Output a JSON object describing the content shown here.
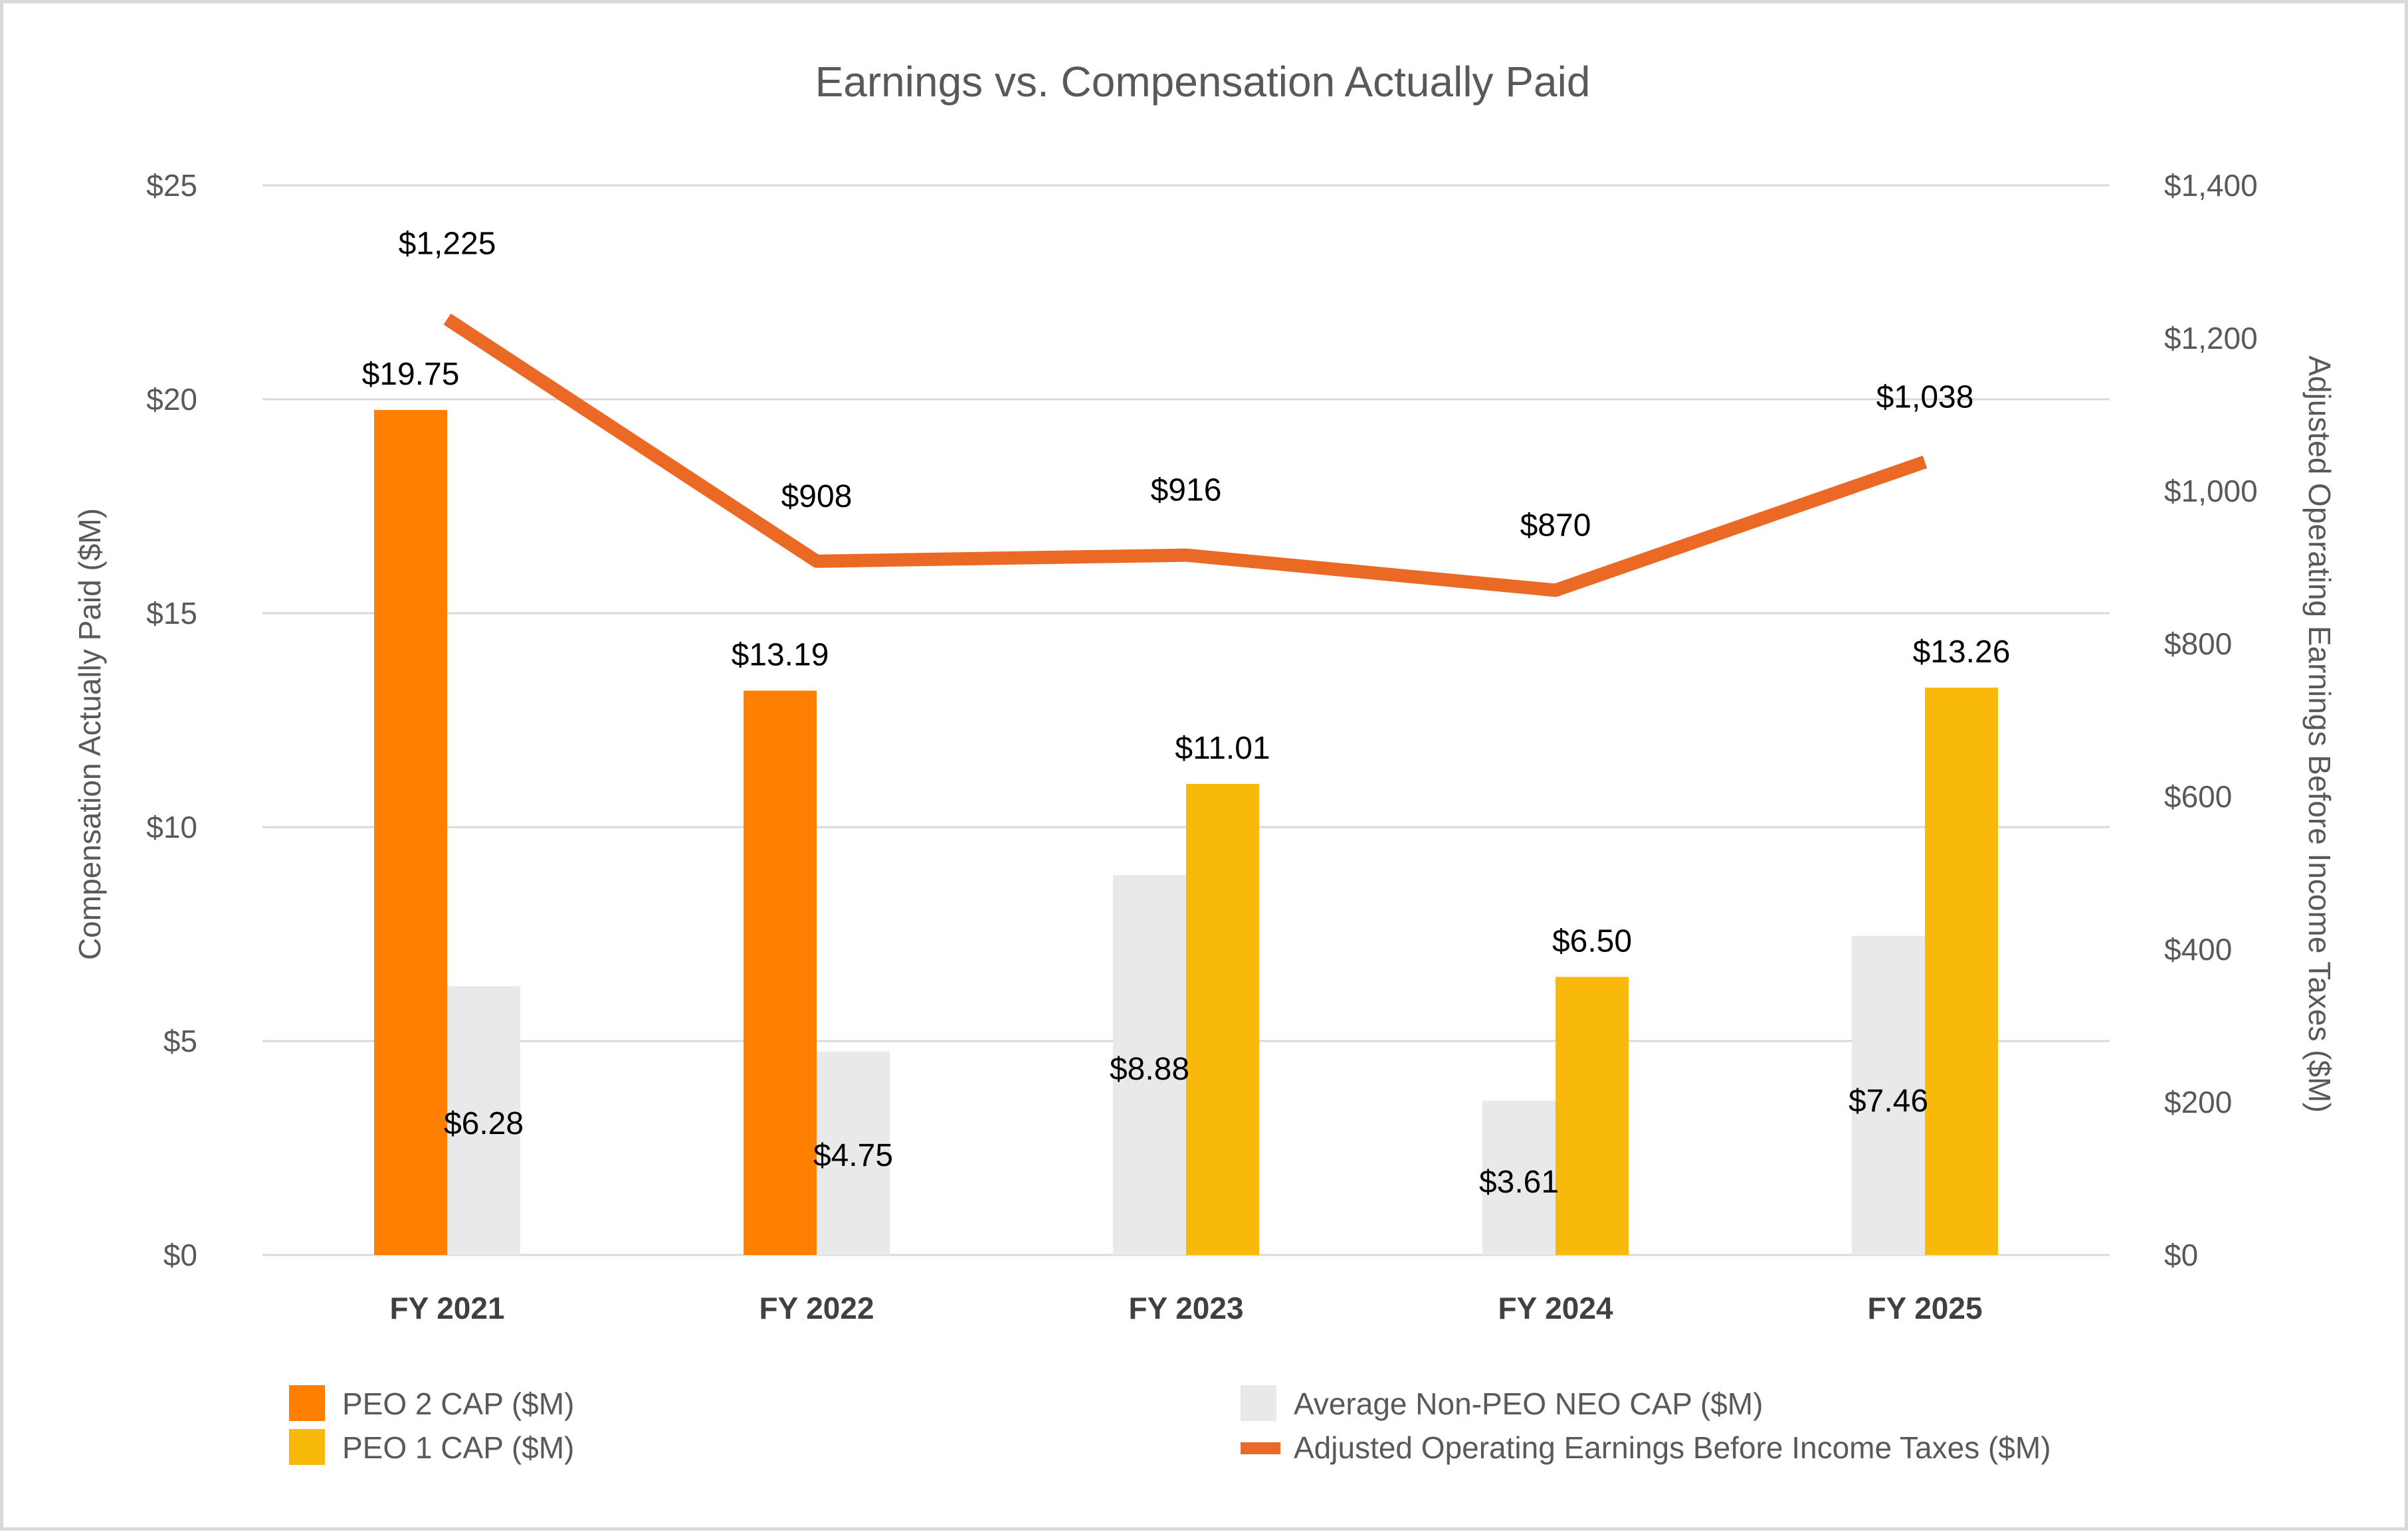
{
  "chart_data": {
    "type": "bar",
    "title": "Earnings vs. Compensation Actually Paid",
    "categories": [
      "FY 2021",
      "FY 2022",
      "FY 2023",
      "FY 2024",
      "FY 2025"
    ],
    "ylabel": "Compensation Actually Paid ($M)",
    "y2label": "Adjusted Operating Earnings Before Income Taxes ($M)",
    "ylim": [
      0,
      25
    ],
    "y2lim": [
      0,
      1400
    ],
    "yticks": [
      "$0",
      "$5",
      "$10",
      "$15",
      "$20",
      "$25"
    ],
    "y2ticks": [
      "$0",
      "$200",
      "$400",
      "$600",
      "$800",
      "$1,000",
      "$1,200",
      "$1,400"
    ],
    "grid": true,
    "legend_position": "bottom",
    "series": [
      {
        "name": "PEO 2 CAP ($M)",
        "kind": "bar",
        "axis": "left",
        "color": "#FF8000",
        "values": [
          19.75,
          13.19,
          null,
          null,
          null
        ],
        "labels": [
          "$19.75",
          "$13.19",
          "",
          "",
          ""
        ]
      },
      {
        "name": "Average Non-PEO NEO CAP ($M)",
        "kind": "bar",
        "axis": "left",
        "color": "#E8E9EA",
        "values": [
          6.28,
          4.75,
          8.88,
          3.61,
          7.46
        ],
        "labels": [
          "$6.28",
          "$4.75",
          "$8.88",
          "$3.61",
          "$7.46"
        ]
      },
      {
        "name": "PEO 1 CAP ($M)",
        "kind": "bar",
        "axis": "left",
        "color": "#F9B90A",
        "values": [
          null,
          null,
          11.01,
          6.5,
          13.26
        ],
        "labels": [
          "",
          "",
          "$11.01",
          "$6.50",
          "$13.26"
        ]
      },
      {
        "name": "Adjusted Operating Earnings Before Income Taxes ($M)",
        "kind": "line",
        "axis": "right",
        "color": "#EA6A25",
        "values": [
          1225,
          908,
          916,
          870,
          1038
        ],
        "labels": [
          "$1,225",
          "$908",
          "$916",
          "$870",
          "$1,038"
        ]
      }
    ]
  }
}
